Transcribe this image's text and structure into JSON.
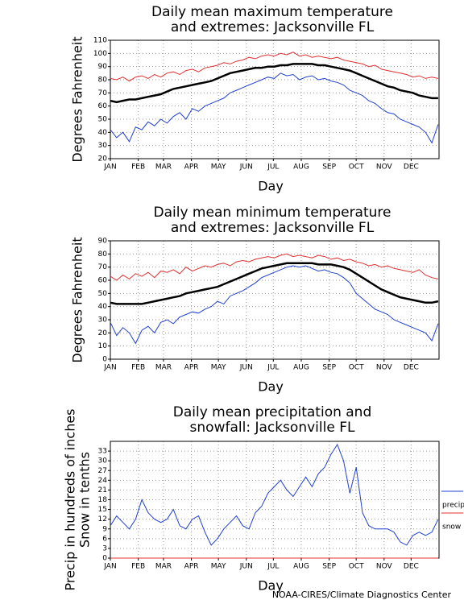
{
  "chart_data": [
    {
      "type": "line",
      "title": [
        "Daily mean maximum temperature",
        "and extremes: Jacksonville FL"
      ],
      "ylabel": [
        "Degrees Fahrenheit"
      ],
      "xlabel": "Day",
      "x": [
        1,
        8,
        15,
        22,
        29,
        36,
        43,
        50,
        57,
        64,
        71,
        78,
        85,
        92,
        99,
        106,
        113,
        120,
        127,
        134,
        141,
        148,
        155,
        162,
        169,
        176,
        183,
        190,
        197,
        204,
        211,
        218,
        225,
        232,
        239,
        246,
        253,
        260,
        267,
        274,
        281,
        288,
        295,
        302,
        309,
        316,
        323,
        330,
        337,
        344,
        351,
        358,
        365
      ],
      "xlim": [
        1,
        366
      ],
      "xticks": [
        {
          "value": 1,
          "label": "JAN"
        },
        {
          "value": 32,
          "label": "FEB"
        },
        {
          "value": 60,
          "label": "MAR"
        },
        {
          "value": 91,
          "label": "APR"
        },
        {
          "value": 121,
          "label": "MAY"
        },
        {
          "value": 152,
          "label": "JUN"
        },
        {
          "value": 182,
          "label": "JUL"
        },
        {
          "value": 213,
          "label": "AUG"
        },
        {
          "value": 244,
          "label": "SEP"
        },
        {
          "value": 274,
          "label": "OCT"
        },
        {
          "value": 305,
          "label": "NOV"
        },
        {
          "value": 335,
          "label": "DEC"
        }
      ],
      "ylim": [
        20,
        110
      ],
      "yticks": [
        20,
        30,
        40,
        50,
        60,
        70,
        80,
        90,
        100,
        110
      ],
      "grid": true,
      "series": [
        {
          "color": "#e03030",
          "values": [
            81,
            80,
            82,
            79,
            82,
            83,
            81,
            84,
            82,
            85,
            86,
            84,
            87,
            88,
            86,
            89,
            90,
            91,
            93,
            92,
            94,
            95,
            97,
            96,
            98,
            99,
            98,
            100,
            99,
            101,
            98,
            99,
            97,
            98,
            97,
            96,
            97,
            95,
            94,
            93,
            92,
            90,
            91,
            88,
            87,
            86,
            85,
            84,
            82,
            83,
            81,
            82,
            81
          ]
        },
        {
          "color": "#000000",
          "values": [
            64,
            63,
            64,
            65,
            65,
            66,
            67,
            68,
            69,
            71,
            73,
            74,
            75,
            76,
            77,
            78,
            79,
            81,
            83,
            85,
            86,
            87,
            88,
            89,
            89,
            90,
            90,
            91,
            91,
            92,
            92,
            92,
            92,
            91,
            91,
            90,
            89,
            88,
            87,
            85,
            83,
            81,
            79,
            77,
            75,
            74,
            72,
            71,
            70,
            68,
            67,
            66,
            66
          ]
        },
        {
          "color": "#2040d0",
          "values": [
            42,
            36,
            40,
            33,
            44,
            42,
            48,
            45,
            50,
            47,
            52,
            55,
            50,
            58,
            56,
            60,
            62,
            64,
            66,
            70,
            72,
            74,
            76,
            78,
            80,
            82,
            81,
            85,
            83,
            84,
            80,
            82,
            83,
            80,
            81,
            79,
            78,
            76,
            72,
            70,
            68,
            64,
            62,
            58,
            55,
            54,
            50,
            48,
            46,
            44,
            40,
            32,
            46
          ]
        }
      ]
    },
    {
      "type": "line",
      "title": [
        "Daily mean minimum temperature",
        "and extremes: Jacksonville FL"
      ],
      "ylabel": [
        "Degrees Fahrenheit"
      ],
      "xlabel": "Day",
      "x": [
        1,
        8,
        15,
        22,
        29,
        36,
        43,
        50,
        57,
        64,
        71,
        78,
        85,
        92,
        99,
        106,
        113,
        120,
        127,
        134,
        141,
        148,
        155,
        162,
        169,
        176,
        183,
        190,
        197,
        204,
        211,
        218,
        225,
        232,
        239,
        246,
        253,
        260,
        267,
        274,
        281,
        288,
        295,
        302,
        309,
        316,
        323,
        330,
        337,
        344,
        351,
        358,
        365
      ],
      "xlim": [
        1,
        366
      ],
      "xticks": [
        {
          "value": 1,
          "label": "JAN"
        },
        {
          "value": 32,
          "label": "FEB"
        },
        {
          "value": 60,
          "label": "MAR"
        },
        {
          "value": 91,
          "label": "APR"
        },
        {
          "value": 121,
          "label": "MAY"
        },
        {
          "value": 152,
          "label": "JUN"
        },
        {
          "value": 182,
          "label": "JUL"
        },
        {
          "value": 213,
          "label": "AUG"
        },
        {
          "value": 244,
          "label": "SEP"
        },
        {
          "value": 274,
          "label": "OCT"
        },
        {
          "value": 305,
          "label": "NOV"
        },
        {
          "value": 335,
          "label": "DEC"
        }
      ],
      "ylim": [
        0,
        90
      ],
      "yticks": [
        0,
        10,
        20,
        30,
        40,
        50,
        60,
        70,
        80,
        90
      ],
      "grid": true,
      "series": [
        {
          "color": "#e03030",
          "values": [
            63,
            60,
            64,
            61,
            65,
            63,
            66,
            62,
            67,
            66,
            68,
            65,
            70,
            67,
            69,
            71,
            70,
            72,
            73,
            71,
            74,
            75,
            74,
            76,
            77,
            78,
            77,
            79,
            80,
            78,
            79,
            78,
            77,
            79,
            78,
            76,
            77,
            75,
            76,
            74,
            73,
            71,
            72,
            70,
            71,
            69,
            68,
            67,
            66,
            68,
            64,
            62,
            61
          ]
        },
        {
          "color": "#000000",
          "values": [
            43,
            42,
            42,
            42,
            42,
            42,
            43,
            44,
            45,
            46,
            47,
            48,
            50,
            51,
            52,
            53,
            54,
            55,
            57,
            59,
            61,
            63,
            65,
            67,
            69,
            70,
            71,
            72,
            73,
            73,
            73,
            73,
            73,
            72,
            72,
            72,
            71,
            70,
            68,
            65,
            62,
            59,
            56,
            53,
            51,
            49,
            47,
            46,
            45,
            44,
            43,
            43,
            44
          ]
        },
        {
          "color": "#2040d0",
          "values": [
            28,
            18,
            24,
            20,
            12,
            22,
            25,
            20,
            28,
            30,
            27,
            32,
            34,
            36,
            35,
            38,
            40,
            44,
            42,
            48,
            50,
            52,
            55,
            58,
            62,
            64,
            66,
            68,
            70,
            71,
            70,
            71,
            69,
            67,
            68,
            66,
            65,
            62,
            58,
            50,
            46,
            42,
            38,
            36,
            34,
            30,
            28,
            26,
            24,
            22,
            20,
            14,
            27
          ]
        }
      ]
    },
    {
      "type": "line",
      "title": [
        "Daily mean precipitation and",
        "snowfall: Jacksonville FL"
      ],
      "ylabel": [
        "Precip in hundreds of inches",
        "Snow in tenths"
      ],
      "xlabel": "Day",
      "x": [
        1,
        8,
        15,
        22,
        29,
        36,
        43,
        50,
        57,
        64,
        71,
        78,
        85,
        92,
        99,
        106,
        113,
        120,
        127,
        134,
        141,
        148,
        155,
        162,
        169,
        176,
        183,
        190,
        197,
        204,
        211,
        218,
        225,
        232,
        239,
        246,
        253,
        260,
        267,
        274,
        281,
        288,
        295,
        302,
        309,
        316,
        323,
        330,
        337,
        344,
        351,
        358,
        365
      ],
      "xlim": [
        1,
        366
      ],
      "xticks": [
        {
          "value": 1,
          "label": "JAN"
        },
        {
          "value": 32,
          "label": "FEB"
        },
        {
          "value": 60,
          "label": "MAR"
        },
        {
          "value": 91,
          "label": "APR"
        },
        {
          "value": 121,
          "label": "MAY"
        },
        {
          "value": 152,
          "label": "JUN"
        },
        {
          "value": 182,
          "label": "JUL"
        },
        {
          "value": 213,
          "label": "AUG"
        },
        {
          "value": 244,
          "label": "SEP"
        },
        {
          "value": 274,
          "label": "OCT"
        },
        {
          "value": 305,
          "label": "NOV"
        },
        {
          "value": 335,
          "label": "DEC"
        }
      ],
      "ylim": [
        0,
        36
      ],
      "yticks": [
        0,
        3,
        6,
        9,
        12,
        15,
        18,
        21,
        24,
        27,
        30,
        33
      ],
      "grid": true,
      "series": [
        {
          "name": "precip",
          "color": "#2040d0",
          "values": [
            10,
            13,
            11,
            9,
            12,
            18,
            14,
            12,
            11,
            12,
            15,
            10,
            9,
            12,
            13,
            8,
            4,
            6,
            9,
            11,
            13,
            10,
            9,
            14,
            16,
            20,
            22,
            24,
            21,
            19,
            22,
            25,
            22,
            26,
            28,
            32,
            35,
            30,
            20,
            28,
            14,
            10,
            9,
            9,
            9,
            8,
            5,
            4,
            7,
            8,
            7,
            8,
            12
          ]
        },
        {
          "name": "snow",
          "color": "#e03030",
          "values": [
            0,
            0,
            0,
            0,
            0,
            0,
            0,
            0,
            0,
            0,
            0,
            0,
            0,
            0,
            0,
            0,
            0,
            0,
            0,
            0,
            0,
            0,
            0,
            0,
            0,
            0,
            0,
            0,
            0,
            0,
            0,
            0,
            0,
            0,
            0,
            0,
            0,
            0,
            0,
            0,
            0,
            0,
            0,
            0,
            0,
            0,
            0,
            0,
            0,
            0,
            0,
            0,
            0
          ]
        }
      ]
    }
  ],
  "footer": "NOAA-CIRES/Climate Diagnostics Center"
}
